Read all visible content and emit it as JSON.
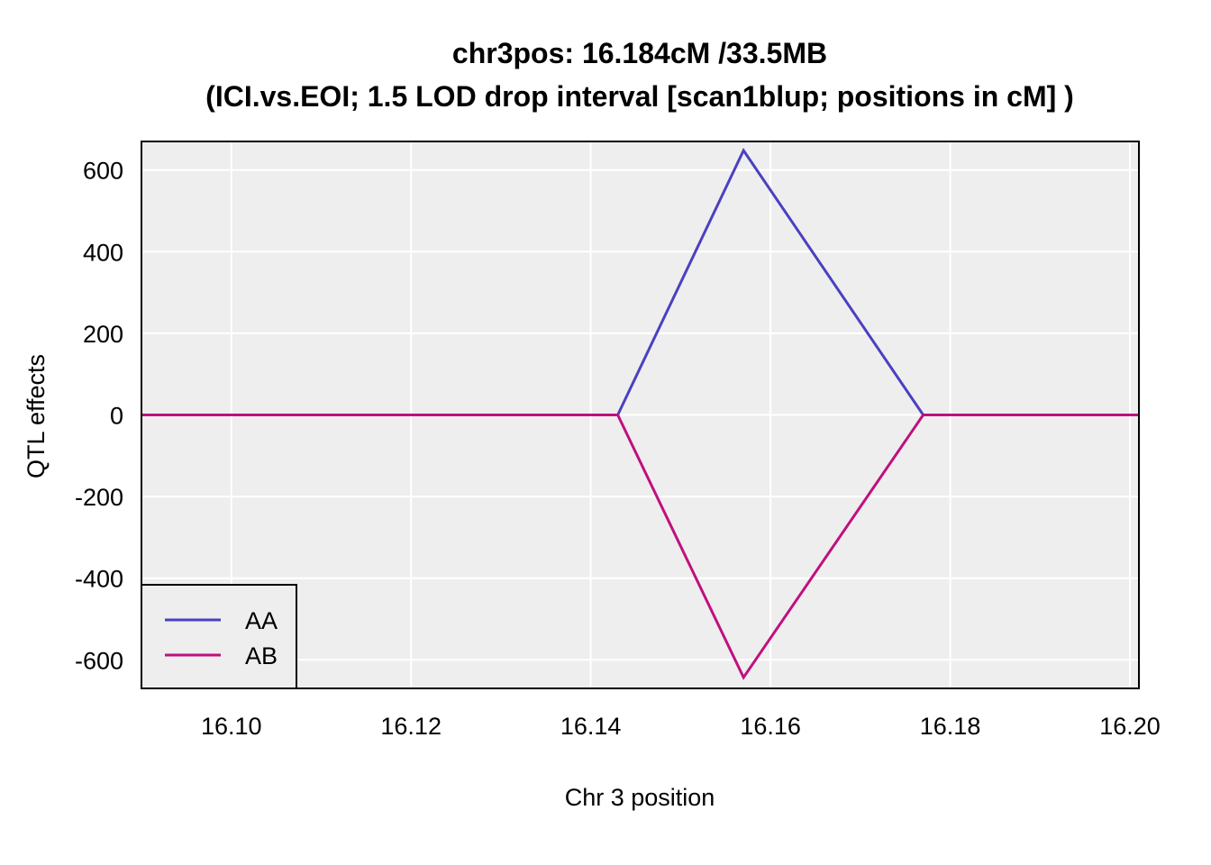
{
  "chart_data": {
    "type": "line",
    "title": "chr3pos: 16.184cM /33.5MB",
    "subtitle": "(ICI.vs.EOI; 1.5 LOD drop interval [scan1blup; positions in cM] )",
    "xlabel": "Chr 3 position",
    "ylabel": "QTL effects",
    "xlim": [
      16.09,
      16.201
    ],
    "ylim": [
      -670,
      670
    ],
    "xticks": [
      16.1,
      16.12,
      16.14,
      16.16,
      16.18,
      16.2
    ],
    "xtick_labels": [
      "16.10",
      "16.12",
      "16.14",
      "16.16",
      "16.18",
      "16.20"
    ],
    "yticks": [
      600,
      400,
      200,
      0,
      -200,
      -400,
      -600
    ],
    "ytick_labels": [
      "600",
      "400",
      "200",
      "0",
      "-200",
      "-400",
      "-600"
    ],
    "grid": true,
    "legend_position": "bottom-left",
    "background_color": "#eeeeee",
    "series": [
      {
        "name": "AA",
        "color": "#4b40c0",
        "x": [
          16.09,
          16.143,
          16.157,
          16.177,
          16.201
        ],
        "y": [
          0,
          0,
          648,
          0,
          0
        ]
      },
      {
        "name": "AB",
        "color": "#c0107e",
        "x": [
          16.09,
          16.143,
          16.157,
          16.177,
          16.201
        ],
        "y": [
          0,
          0,
          -643,
          0,
          0
        ]
      }
    ]
  }
}
